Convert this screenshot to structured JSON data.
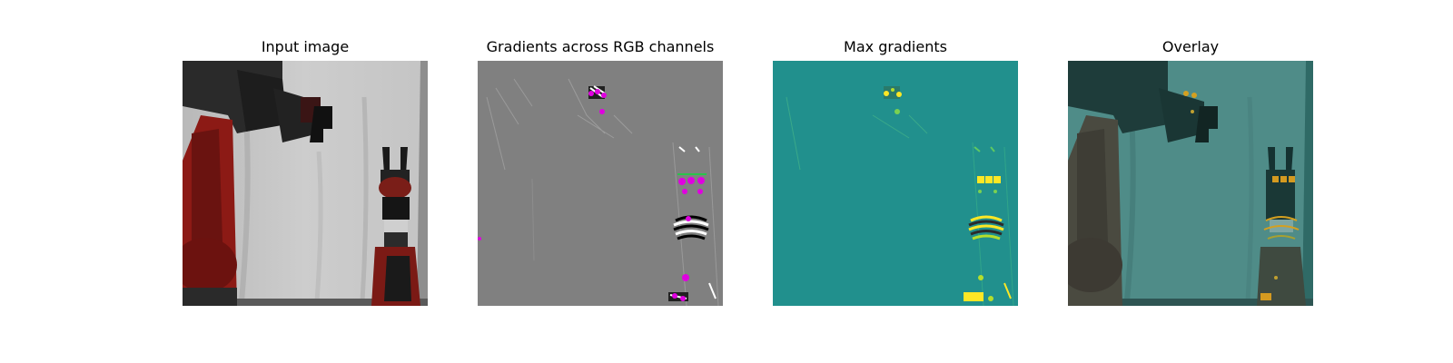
{
  "panels": [
    {
      "title": "Input image"
    },
    {
      "title": "Gradients across RGB channels"
    },
    {
      "title": "Max gradients"
    },
    {
      "title": "Overlay"
    }
  ],
  "colors": {
    "gradient_gray": "#808080",
    "max_grad_teal": "#21908d",
    "highlight_yellow": "#fde725",
    "highlight_magenta": "#e000e0",
    "robot_red": "#a3201a"
  }
}
